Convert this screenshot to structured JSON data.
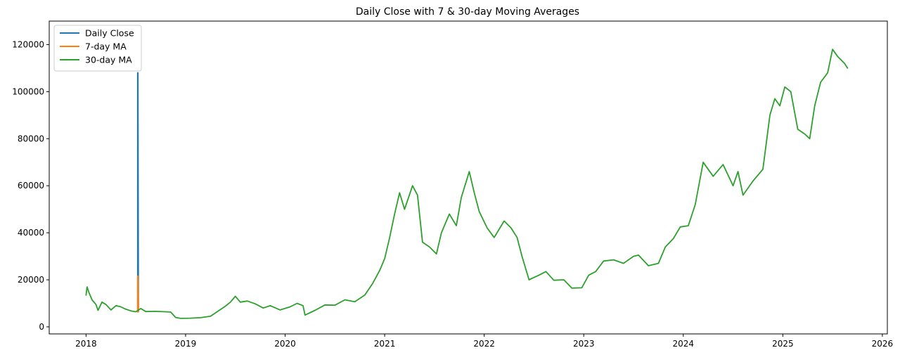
{
  "chart_data": {
    "type": "line",
    "title": "Daily Close with 7 & 30-day Moving Averages",
    "xlabel": "",
    "ylabel": "",
    "xlim": [
      2017.63,
      2026.05
    ],
    "ylim": [
      -3000,
      130000
    ],
    "x_ticks": [
      2018,
      2019,
      2020,
      2021,
      2022,
      2023,
      2024,
      2025,
      2026
    ],
    "x_tick_labels": [
      "2018",
      "2019",
      "2020",
      "2021",
      "2022",
      "2023",
      "2024",
      "2025",
      "2026"
    ],
    "y_ticks": [
      0,
      20000,
      40000,
      60000,
      80000,
      100000,
      120000
    ],
    "y_tick_labels": [
      "0",
      "20000",
      "40000",
      "60000",
      "80000",
      "100000",
      "120000"
    ],
    "grid": false,
    "legend_position": "top-left",
    "series": [
      {
        "name": "Daily Close",
        "color": "#1f77b4",
        "points": [
          [
            2018.52,
            6400
          ],
          [
            2018.52,
            108000
          ],
          [
            2018.525,
            6500
          ]
        ]
      },
      {
        "name": "7-day MA",
        "color": "#ff7f0e",
        "points": [
          [
            2018.52,
            6400
          ],
          [
            2018.52,
            21500
          ],
          [
            2018.525,
            6500
          ]
        ]
      },
      {
        "name": "30-day MA",
        "color": "#2ca02c",
        "points": [
          [
            2018.0,
            13500
          ],
          [
            2018.01,
            17000
          ],
          [
            2018.03,
            14500
          ],
          [
            2018.06,
            11500
          ],
          [
            2018.1,
            9500
          ],
          [
            2018.12,
            7000
          ],
          [
            2018.16,
            10500
          ],
          [
            2018.2,
            9500
          ],
          [
            2018.25,
            7200
          ],
          [
            2018.3,
            9000
          ],
          [
            2018.35,
            8500
          ],
          [
            2018.4,
            7500
          ],
          [
            2018.45,
            6800
          ],
          [
            2018.5,
            6400
          ],
          [
            2018.55,
            7800
          ],
          [
            2018.6,
            6500
          ],
          [
            2018.7,
            6600
          ],
          [
            2018.85,
            6300
          ],
          [
            2018.9,
            4000
          ],
          [
            2018.95,
            3600
          ],
          [
            2019.05,
            3700
          ],
          [
            2019.15,
            3900
          ],
          [
            2019.25,
            4500
          ],
          [
            2019.32,
            6500
          ],
          [
            2019.4,
            8800
          ],
          [
            2019.45,
            10500
          ],
          [
            2019.5,
            13000
          ],
          [
            2019.55,
            10500
          ],
          [
            2019.62,
            11000
          ],
          [
            2019.7,
            9800
          ],
          [
            2019.78,
            8000
          ],
          [
            2019.85,
            9000
          ],
          [
            2019.95,
            7200
          ],
          [
            2020.05,
            8500
          ],
          [
            2020.12,
            10000
          ],
          [
            2020.18,
            9000
          ],
          [
            2020.2,
            5000
          ],
          [
            2020.3,
            7000
          ],
          [
            2020.4,
            9300
          ],
          [
            2020.5,
            9200
          ],
          [
            2020.6,
            11500
          ],
          [
            2020.7,
            10700
          ],
          [
            2020.8,
            13500
          ],
          [
            2020.88,
            18500
          ],
          [
            2020.95,
            24000
          ],
          [
            2021.0,
            29000
          ],
          [
            2021.05,
            38000
          ],
          [
            2021.1,
            48000
          ],
          [
            2021.15,
            57000
          ],
          [
            2021.2,
            50000
          ],
          [
            2021.28,
            60000
          ],
          [
            2021.33,
            56000
          ],
          [
            2021.38,
            36000
          ],
          [
            2021.45,
            34000
          ],
          [
            2021.52,
            31000
          ],
          [
            2021.57,
            40000
          ],
          [
            2021.65,
            48000
          ],
          [
            2021.72,
            43000
          ],
          [
            2021.77,
            55000
          ],
          [
            2021.85,
            66000
          ],
          [
            2021.9,
            57000
          ],
          [
            2021.95,
            49000
          ],
          [
            2022.03,
            42000
          ],
          [
            2022.1,
            38000
          ],
          [
            2022.2,
            45000
          ],
          [
            2022.27,
            42000
          ],
          [
            2022.33,
            38000
          ],
          [
            2022.38,
            30000
          ],
          [
            2022.45,
            20000
          ],
          [
            2022.55,
            22000
          ],
          [
            2022.62,
            23500
          ],
          [
            2022.7,
            19800
          ],
          [
            2022.8,
            20000
          ],
          [
            2022.88,
            16500
          ],
          [
            2022.98,
            16600
          ],
          [
            2023.05,
            22000
          ],
          [
            2023.12,
            23500
          ],
          [
            2023.2,
            28000
          ],
          [
            2023.3,
            28500
          ],
          [
            2023.4,
            27000
          ],
          [
            2023.5,
            30000
          ],
          [
            2023.55,
            30500
          ],
          [
            2023.65,
            26000
          ],
          [
            2023.75,
            27000
          ],
          [
            2023.82,
            34000
          ],
          [
            2023.9,
            37500
          ],
          [
            2023.97,
            42500
          ],
          [
            2024.05,
            43000
          ],
          [
            2024.12,
            52000
          ],
          [
            2024.2,
            70000
          ],
          [
            2024.3,
            64000
          ],
          [
            2024.4,
            69000
          ],
          [
            2024.5,
            60000
          ],
          [
            2024.55,
            66000
          ],
          [
            2024.6,
            56000
          ],
          [
            2024.7,
            62000
          ],
          [
            2024.8,
            67000
          ],
          [
            2024.87,
            90000
          ],
          [
            2024.92,
            97000
          ],
          [
            2024.97,
            94000
          ],
          [
            2025.02,
            102000
          ],
          [
            2025.08,
            100000
          ],
          [
            2025.15,
            84000
          ],
          [
            2025.22,
            82000
          ],
          [
            2025.27,
            80000
          ],
          [
            2025.32,
            94000
          ],
          [
            2025.38,
            104000
          ],
          [
            2025.45,
            108000
          ],
          [
            2025.5,
            118000
          ],
          [
            2025.55,
            115000
          ],
          [
            2025.62,
            112000
          ],
          [
            2025.65,
            110000
          ]
        ]
      }
    ]
  }
}
